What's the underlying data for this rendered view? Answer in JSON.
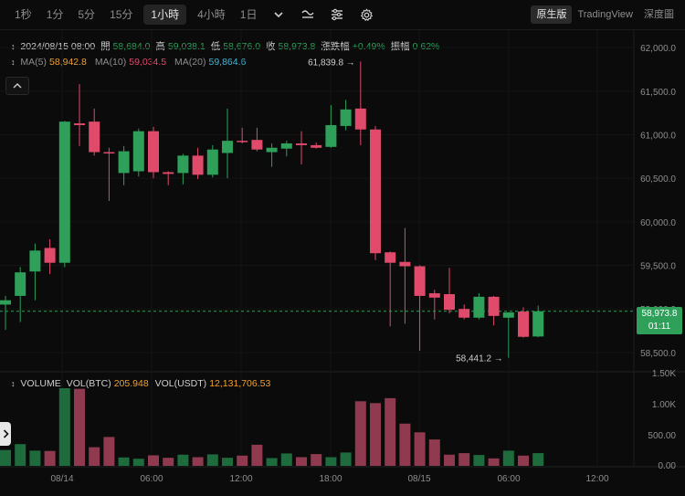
{
  "toolbar": {
    "intervals": [
      "1秒",
      "1分",
      "5分",
      "15分",
      "1小時",
      "4小時",
      "1日"
    ],
    "active_interval": "1小時",
    "icons": [
      "chevron-down-icon",
      "candle-style-icon",
      "indicators-icon",
      "settings-icon"
    ],
    "views": [
      "原生版",
      "TradingView",
      "深度圖"
    ],
    "active_view": "原生版"
  },
  "ohlc": {
    "date": "2024/08/15 08:00",
    "open_label": "開",
    "open": "58,684.0",
    "high_label": "高",
    "high": "59,038.1",
    "low_label": "低",
    "low": "58,676.0",
    "close_label": "收",
    "close": "58,973.8",
    "change_label": "漲跌幅",
    "change": "+0.49%",
    "amp_label": "振幅",
    "amp": "0.62%"
  },
  "ma": {
    "ma5_label": "MA(5)",
    "ma5": "58,942.8",
    "ma10_label": "MA(10)",
    "ma10": "59,034.5",
    "ma20_label": "MA(20)",
    "ma20": "59,864.6"
  },
  "volume_info": {
    "label": "VOLUME",
    "btc_label": "VOL(BTC)",
    "btc": "205.948",
    "usdt_label": "VOL(USDT)",
    "usdt": "12,131,706.53"
  },
  "last_price": {
    "price": "58,973.8",
    "countdown": "01:11"
  },
  "colors": {
    "up": "#2ea05a",
    "down": "#e04a6b",
    "ma5": "#f0a030",
    "ma10": "#e04a6b",
    "ma20": "#3fb8d8"
  },
  "chart_data": {
    "type": "candlestick",
    "price_axis": {
      "ticks": [
        "62,000.0",
        "61,500.0",
        "61,000.0",
        "60,500.0",
        "60,000.0",
        "59,500.0",
        "59,000.0",
        "58,500.0"
      ],
      "range": [
        58300,
        62200
      ]
    },
    "volume_axis": {
      "ticks": [
        "1.50K",
        "1.00K",
        "500.00",
        "0.00"
      ],
      "range": [
        0,
        1500
      ]
    },
    "time_axis": [
      "08/14",
      "06:00",
      "12:00",
      "18:00",
      "08/15",
      "06:00",
      "12:00"
    ],
    "annotations": {
      "high": "61,839.8",
      "low": "58,441.2"
    },
    "candles": [
      {
        "o": 59050,
        "h": 59150,
        "l": 58760,
        "c": 59100
      },
      {
        "o": 59150,
        "h": 59480,
        "l": 58850,
        "c": 59420
      },
      {
        "o": 59430,
        "h": 59750,
        "l": 59100,
        "c": 59670
      },
      {
        "o": 59700,
        "h": 59800,
        "l": 59400,
        "c": 59530
      },
      {
        "o": 59530,
        "h": 61160,
        "l": 59480,
        "c": 61150
      },
      {
        "o": 61130,
        "h": 61580,
        "l": 60870,
        "c": 61110
      },
      {
        "o": 61150,
        "h": 61300,
        "l": 60760,
        "c": 60800
      },
      {
        "o": 60800,
        "h": 60850,
        "l": 60240,
        "c": 60790
      },
      {
        "o": 60560,
        "h": 60870,
        "l": 60420,
        "c": 60810
      },
      {
        "o": 60580,
        "h": 61070,
        "l": 60520,
        "c": 61040
      },
      {
        "o": 61040,
        "h": 61090,
        "l": 60500,
        "c": 60570
      },
      {
        "o": 60570,
        "h": 60580,
        "l": 60420,
        "c": 60550
      },
      {
        "o": 60560,
        "h": 60780,
        "l": 60430,
        "c": 60760
      },
      {
        "o": 60760,
        "h": 60850,
        "l": 60490,
        "c": 60540
      },
      {
        "o": 60540,
        "h": 60880,
        "l": 60510,
        "c": 60830
      },
      {
        "o": 60790,
        "h": 61300,
        "l": 60500,
        "c": 60930
      },
      {
        "o": 60930,
        "h": 61080,
        "l": 60900,
        "c": 60920
      },
      {
        "o": 60940,
        "h": 61080,
        "l": 60810,
        "c": 60830
      },
      {
        "o": 60800,
        "h": 60900,
        "l": 60630,
        "c": 60850
      },
      {
        "o": 60840,
        "h": 60930,
        "l": 60750,
        "c": 60900
      },
      {
        "o": 60900,
        "h": 61040,
        "l": 60660,
        "c": 60880
      },
      {
        "o": 60880,
        "h": 60910,
        "l": 60840,
        "c": 60850
      },
      {
        "o": 60860,
        "h": 61340,
        "l": 60850,
        "c": 61110
      },
      {
        "o": 61100,
        "h": 61400,
        "l": 61050,
        "c": 61290
      },
      {
        "o": 61300,
        "h": 61840,
        "l": 60880,
        "c": 61060
      },
      {
        "o": 61060,
        "h": 61100,
        "l": 59560,
        "c": 59640
      },
      {
        "o": 59650,
        "h": 59660,
        "l": 58800,
        "c": 59530
      },
      {
        "o": 59540,
        "h": 59930,
        "l": 58830,
        "c": 59490
      },
      {
        "o": 59490,
        "h": 59500,
        "l": 58520,
        "c": 59150
      },
      {
        "o": 59180,
        "h": 59220,
        "l": 58880,
        "c": 59130
      },
      {
        "o": 59170,
        "h": 59470,
        "l": 58950,
        "c": 58990
      },
      {
        "o": 59000,
        "h": 59050,
        "l": 58880,
        "c": 58900
      },
      {
        "o": 58900,
        "h": 59180,
        "l": 58880,
        "c": 59140
      },
      {
        "o": 59140,
        "h": 59150,
        "l": 58810,
        "c": 58920
      },
      {
        "o": 58900,
        "h": 58960,
        "l": 58440,
        "c": 58960
      },
      {
        "o": 58970,
        "h": 59020,
        "l": 58670,
        "c": 58680
      },
      {
        "o": 58684,
        "h": 59038,
        "l": 58676,
        "c": 58973.8
      }
    ],
    "volumes": [
      255,
      350,
      245,
      240,
      1250,
      1240,
      300,
      465,
      135,
      115,
      170,
      130,
      180,
      140,
      185,
      130,
      165,
      340,
      125,
      200,
      140,
      190,
      140,
      215,
      1040,
      1010,
      1090,
      680,
      540,
      425,
      180,
      205,
      175,
      120,
      245,
      165,
      205
    ]
  }
}
